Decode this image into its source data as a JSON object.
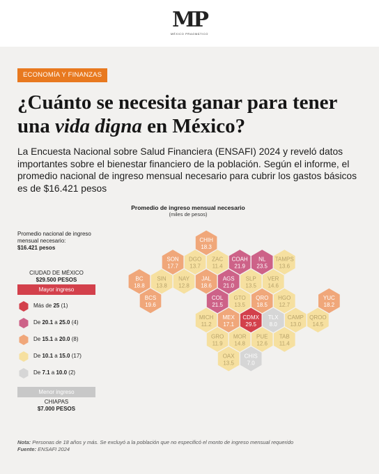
{
  "brand": {
    "mark": "MP",
    "name": "MÉXICO PRAGMÁTICO"
  },
  "tag": "ECONOMÍA Y FINANZAS",
  "headline": {
    "part1": "¿Cuánto se necesita ganar para tener una ",
    "emph": "vida digna",
    "part2": " en México?"
  },
  "intro": "La Encuesta Nacional sobre Salud Financiera (ENSAFI) 2024 y reveló datos importantes sobre el bienestar financiero de la población. Según el informe, el promedio nacional de ingreso mensual necesario para cubrir los gastos básicos es de $16.421 pesos",
  "national": {
    "label": "Promedio nacional de ingreso mensual necesario:",
    "value": "$16.421 pesos"
  },
  "highest": {
    "label": "Mayor ingreso",
    "place": "CIUDAD DE MÉXICO",
    "value": "$29.500 PESOS"
  },
  "lowest": {
    "label": "Menor ingreso",
    "place": "CHIAPAS",
    "value": "$7.000 PESOS"
  },
  "legend": [
    {
      "prefix": "Más de ",
      "bold": "25",
      "mid": "",
      "bold2": "",
      "count": " (1)",
      "color": "#d3404b"
    },
    {
      "prefix": "De ",
      "bold": "20.1",
      "mid": " a ",
      "bold2": "25.0",
      "count": " (4)",
      "color": "#cd6288"
    },
    {
      "prefix": "De ",
      "bold": "15.1",
      "mid": " a ",
      "bold2": "20.0",
      "count": " (8)",
      "color": "#f0a77a"
    },
    {
      "prefix": "De ",
      "bold": "10.1",
      "mid": " a ",
      "bold2": "15.0",
      "count": " (17)",
      "color": "#f6e0a0"
    },
    {
      "prefix": "De ",
      "bold": "7.1",
      "mid": " a ",
      "bold2": "10.0",
      "count": " (2)",
      "color": "#d6d6d6"
    }
  ],
  "colors": {
    "accent": "#e8791f",
    "highest_bar": "#d3404b",
    "lowest_bar": "#c8c8c8",
    "panel": "#f2f1ef"
  },
  "footer": {
    "note_label": "Nota:",
    "note": " Personas de 18 años y más. Se excluyó a la población que no especificó el monto de ingreso mensual requerido",
    "source_label": "Fuente:",
    "source": " ENSAFI 2024"
  },
  "chart_data": {
    "type": "hexbin-map",
    "title": "Promedio de ingreso mensual necesario",
    "subtitle": "(miles de pesos)",
    "states": [
      {
        "abbr": "BC",
        "value": 18.8,
        "color": "#f0a77a",
        "col": 0,
        "row": 1
      },
      {
        "abbr": "BCS",
        "value": 19.6,
        "color": "#f0a77a",
        "col": 0,
        "row": 2
      },
      {
        "abbr": "SON",
        "value": 17.7,
        "color": "#f0a77a",
        "col": 1,
        "row": 0
      },
      {
        "abbr": "SIN",
        "value": 13.8,
        "color": "#f6e0a0",
        "col": 1,
        "row": 1
      },
      {
        "abbr": "DGO",
        "value": 13.7,
        "color": "#f6e0a0",
        "col": 2,
        "row": 0
      },
      {
        "abbr": "NAY",
        "value": 12.8,
        "color": "#f6e0a0",
        "col": 2,
        "row": 1
      },
      {
        "abbr": "CHIH",
        "value": 18.3,
        "color": "#f0a77a",
        "col": 3,
        "row": -1
      },
      {
        "abbr": "ZAC",
        "value": 11.4,
        "color": "#f6e0a0",
        "col": 3,
        "row": 0
      },
      {
        "abbr": "JAL",
        "value": 18.6,
        "color": "#f0a77a",
        "col": 3,
        "row": 1
      },
      {
        "abbr": "COL",
        "value": 21.5,
        "color": "#cd6288",
        "col": 3,
        "row": 2
      },
      {
        "abbr": "MICH",
        "value": 11.2,
        "color": "#f6e0a0",
        "col": 3,
        "row": 3
      },
      {
        "abbr": "GRO",
        "value": 11.9,
        "color": "#f6e0a0",
        "col": 3,
        "row": 4
      },
      {
        "abbr": "COAH",
        "value": 21.9,
        "color": "#cd6288",
        "col": 4,
        "row": 0
      },
      {
        "abbr": "AGS",
        "value": 21.0,
        "color": "#cd6288",
        "col": 4,
        "row": 1
      },
      {
        "abbr": "GTO",
        "value": 13.5,
        "color": "#f6e0a0",
        "col": 4,
        "row": 2
      },
      {
        "abbr": "MEX",
        "value": 17.1,
        "color": "#f0a77a",
        "col": 4,
        "row": 3
      },
      {
        "abbr": "MOR",
        "value": 14.8,
        "color": "#f6e0a0",
        "col": 4,
        "row": 4
      },
      {
        "abbr": "OAX",
        "value": 13.5,
        "color": "#f6e0a0",
        "col": 4,
        "row": 5
      },
      {
        "abbr": "NL",
        "value": 23.5,
        "color": "#cd6288",
        "col": 5,
        "row": 0
      },
      {
        "abbr": "SLP",
        "value": 13.5,
        "color": "#f6e0a0",
        "col": 5,
        "row": 1
      },
      {
        "abbr": "QRO",
        "value": 18.5,
        "color": "#f0a77a",
        "col": 5,
        "row": 2
      },
      {
        "abbr": "CDMX",
        "value": 29.5,
        "color": "#d3404b",
        "col": 5,
        "row": 3
      },
      {
        "abbr": "PUE",
        "value": 12.6,
        "color": "#f6e0a0",
        "col": 5,
        "row": 4
      },
      {
        "abbr": "CHIS",
        "value": 7.0,
        "color": "#d6d6d6",
        "col": 5,
        "row": 5
      },
      {
        "abbr": "TAMPS",
        "value": 13.6,
        "color": "#f6e0a0",
        "col": 6,
        "row": 0
      },
      {
        "abbr": "VER",
        "value": 14.6,
        "color": "#f6e0a0",
        "col": 6,
        "row": 1
      },
      {
        "abbr": "HGO",
        "value": 12.7,
        "color": "#f6e0a0",
        "col": 6,
        "row": 2
      },
      {
        "abbr": "TLX",
        "value": 8.0,
        "color": "#d6d6d6",
        "col": 6,
        "row": 3
      },
      {
        "abbr": "TAB",
        "value": 11.4,
        "color": "#f6e0a0",
        "col": 6,
        "row": 4
      },
      {
        "abbr": "CAMP",
        "value": 13.0,
        "color": "#f6e0a0",
        "col": 7,
        "row": 3
      },
      {
        "abbr": "YUC",
        "value": 18.2,
        "color": "#f0a77a",
        "col": 8,
        "row": 2
      },
      {
        "abbr": "QROO",
        "value": 14.5,
        "color": "#f6e0a0",
        "col": 8,
        "row": 3
      }
    ]
  }
}
